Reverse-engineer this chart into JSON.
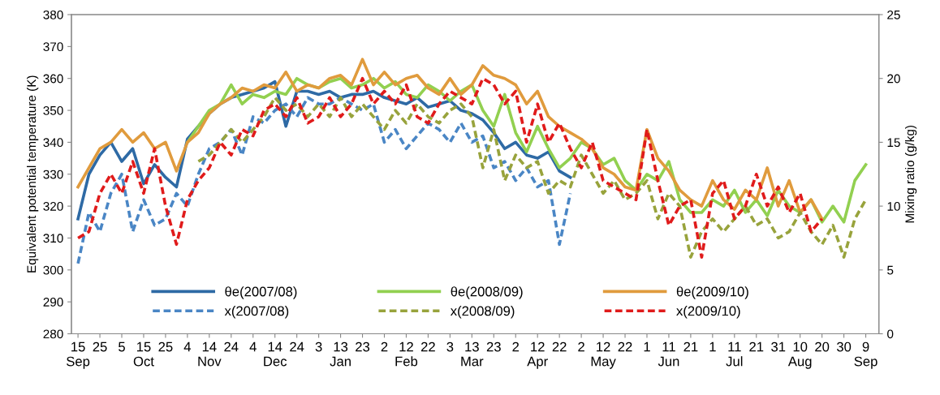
{
  "chart_data": {
    "type": "line",
    "ylabel": "Equivalent potential temperature (K)",
    "y2label": "Mixing ratio (g/kg)",
    "xlim": [
      "2007-09-12",
      "2008-09-15"
    ],
    "ylim": [
      280,
      380
    ],
    "y2lim": [
      0,
      25
    ],
    "yticks": [
      280,
      290,
      300,
      310,
      320,
      330,
      340,
      350,
      360,
      370,
      380
    ],
    "y2ticks": [
      0,
      5,
      10,
      15,
      20,
      25
    ],
    "xticks": [
      {
        "value": "2007-09-15",
        "label": "15\nSep"
      },
      {
        "value": "2007-09-25",
        "label": "25"
      },
      {
        "value": "2007-10-05",
        "label": "5"
      },
      {
        "value": "2007-10-15",
        "label": "15\nOct"
      },
      {
        "value": "2007-10-25",
        "label": "25"
      },
      {
        "value": "2007-11-04",
        "label": "4"
      },
      {
        "value": "2007-11-14",
        "label": "14\nNov"
      },
      {
        "value": "2007-11-24",
        "label": "24"
      },
      {
        "value": "2007-12-04",
        "label": "4"
      },
      {
        "value": "2007-12-14",
        "label": "14\nDec"
      },
      {
        "value": "2007-12-24",
        "label": "24"
      },
      {
        "value": "2008-01-03",
        "label": "3"
      },
      {
        "value": "2008-01-13",
        "label": "13\nJan"
      },
      {
        "value": "2008-01-23",
        "label": "23"
      },
      {
        "value": "2008-02-02",
        "label": "2"
      },
      {
        "value": "2008-02-12",
        "label": "12\nFeb"
      },
      {
        "value": "2008-02-22",
        "label": "22"
      },
      {
        "value": "2008-03-03",
        "label": "3"
      },
      {
        "value": "2008-03-13",
        "label": "13\nMar"
      },
      {
        "value": "2008-03-23",
        "label": "23"
      },
      {
        "value": "2008-04-02",
        "label": "2"
      },
      {
        "value": "2008-04-12",
        "label": "12\nApr"
      },
      {
        "value": "2008-04-22",
        "label": "22"
      },
      {
        "value": "2008-05-02",
        "label": "2"
      },
      {
        "value": "2008-05-12",
        "label": "12\nMay"
      },
      {
        "value": "2008-05-22",
        "label": "22"
      },
      {
        "value": "2008-06-01",
        "label": "1"
      },
      {
        "value": "2008-06-11",
        "label": "11\nJun"
      },
      {
        "value": "2008-06-21",
        "label": "21"
      },
      {
        "value": "2008-07-01",
        "label": "1"
      },
      {
        "value": "2008-07-11",
        "label": "11\nJul"
      },
      {
        "value": "2008-07-21",
        "label": "21"
      },
      {
        "value": "2008-07-31",
        "label": "31"
      },
      {
        "value": "2008-08-10",
        "label": "10\nAug"
      },
      {
        "value": "2008-08-20",
        "label": "20"
      },
      {
        "value": "2008-08-30",
        "label": "30"
      },
      {
        "value": "2008-09-09",
        "label": "9\nSep"
      }
    ],
    "grid": false,
    "legend": "bottom",
    "marker": "none",
    "x": [
      "2007-09-15",
      "2007-09-20",
      "2007-09-25",
      "2007-09-30",
      "2007-10-05",
      "2007-10-10",
      "2007-10-15",
      "2007-10-20",
      "2007-10-25",
      "2007-10-30",
      "2007-11-04",
      "2007-11-09",
      "2007-11-14",
      "2007-11-19",
      "2007-11-24",
      "2007-11-29",
      "2007-12-04",
      "2007-12-09",
      "2007-12-14",
      "2007-12-19",
      "2007-12-24",
      "2007-12-29",
      "2008-01-03",
      "2008-01-08",
      "2008-01-13",
      "2008-01-18",
      "2008-01-23",
      "2008-01-28",
      "2008-02-02",
      "2008-02-07",
      "2008-02-12",
      "2008-02-17",
      "2008-02-22",
      "2008-02-27",
      "2008-03-03",
      "2008-03-08",
      "2008-03-13",
      "2008-03-18",
      "2008-03-23",
      "2008-03-28",
      "2008-04-02",
      "2008-04-07",
      "2008-04-12",
      "2008-04-17",
      "2008-04-22",
      "2008-04-27",
      "2008-05-02",
      "2008-05-07",
      "2008-05-12",
      "2008-05-17",
      "2008-05-22",
      "2008-05-27",
      "2008-06-01",
      "2008-06-06",
      "2008-06-11",
      "2008-06-16",
      "2008-06-21",
      "2008-06-26",
      "2008-07-01",
      "2008-07-06",
      "2008-07-11",
      "2008-07-16",
      "2008-07-21",
      "2008-07-26",
      "2008-07-31",
      "2008-08-05",
      "2008-08-10",
      "2008-08-15",
      "2008-08-20",
      "2008-08-25",
      "2008-08-30",
      "2008-09-04",
      "2008-09-09"
    ],
    "series": [
      {
        "name": "θe(2007/08)",
        "color": "#2e6aa5",
        "line_style": "solid",
        "values": [
          316,
          330,
          336,
          340,
          334,
          338,
          327,
          333,
          329,
          326,
          341,
          345,
          349,
          352,
          354,
          355,
          356,
          357,
          359,
          345,
          356,
          356,
          355,
          356,
          354,
          355,
          355,
          356,
          354,
          353,
          352,
          354,
          351,
          352,
          353,
          350,
          349,
          347,
          343,
          338,
          340,
          336,
          335,
          337,
          331,
          329,
          null,
          null,
          null,
          null,
          null,
          null,
          null,
          null,
          null,
          null,
          null,
          null,
          null,
          null,
          null,
          null,
          null,
          null,
          null,
          null,
          null,
          null,
          null,
          null,
          null,
          null,
          null
        ]
      },
      {
        "name": "θe(2008/09)",
        "color": "#92d050",
        "line_style": "solid",
        "values": [
          null,
          null,
          null,
          null,
          null,
          null,
          null,
          null,
          null,
          null,
          340,
          345,
          350,
          352,
          358,
          352,
          355,
          354,
          356,
          355,
          360,
          358,
          357,
          359,
          360,
          357,
          358,
          360,
          357,
          359,
          355,
          354,
          358,
          356,
          353,
          356,
          358,
          350,
          345,
          355,
          343,
          337,
          345,
          338,
          332,
          335,
          340,
          338,
          333,
          335,
          328,
          325,
          330,
          328,
          334,
          322,
          318,
          318,
          322,
          320,
          325,
          318,
          322,
          317,
          325,
          320,
          318,
          322,
          315,
          320,
          315,
          328,
          333
        ]
      },
      {
        "name": "θe(2009/10)",
        "color": "#e09b3d",
        "line_style": "solid",
        "values": [
          326,
          332,
          338,
          340,
          344,
          340,
          343,
          338,
          340,
          331,
          340,
          343,
          349,
          352,
          354,
          357,
          356,
          358,
          357,
          362,
          356,
          358,
          357,
          360,
          361,
          358,
          366,
          358,
          362,
          358,
          360,
          361,
          357,
          355,
          360,
          355,
          358,
          364,
          361,
          360,
          358,
          352,
          356,
          348,
          345,
          343,
          341,
          338,
          332,
          330,
          326,
          325,
          344,
          335,
          331,
          325,
          322,
          320,
          328,
          322,
          319,
          325,
          322,
          332,
          320,
          328,
          318,
          322,
          316,
          null,
          null,
          null,
          null
        ]
      },
      {
        "name": "x(2007/08)",
        "color": "#4a86c5",
        "line_style": "dashed",
        "axis": "y2",
        "values": [
          5.5,
          9.5,
          8,
          11,
          12.5,
          8,
          10.5,
          8.5,
          9,
          11,
          10,
          12.5,
          14.5,
          15,
          16,
          14,
          17,
          16.5,
          17.5,
          18,
          17,
          18.5,
          18,
          18,
          18.5,
          18,
          17.5,
          18,
          15,
          16,
          14.5,
          15.5,
          16.5,
          16,
          15,
          16.5,
          15,
          15.5,
          13,
          13.5,
          12,
          13,
          11.5,
          12,
          7,
          11,
          null,
          null,
          null,
          null,
          null,
          null,
          null,
          null,
          null,
          null,
          null,
          null,
          null,
          null,
          null,
          null,
          null,
          null,
          null,
          null,
          null,
          null,
          null,
          null,
          null,
          null,
          null
        ]
      },
      {
        "name": "x(2008/09)",
        "color": "#98a33c",
        "line_style": "dashed",
        "axis": "y2",
        "values": [
          null,
          null,
          null,
          null,
          null,
          null,
          null,
          null,
          null,
          null,
          null,
          13.5,
          14,
          15,
          16,
          15,
          16,
          17,
          18.5,
          17.5,
          18,
          17,
          18,
          17,
          18.5,
          17,
          18,
          17,
          16,
          17.5,
          16.5,
          18,
          17,
          16.5,
          17.5,
          18,
          17,
          13,
          16,
          12,
          14,
          13,
          13.5,
          11,
          12,
          11.5,
          14,
          12.5,
          11,
          12,
          10.5,
          11,
          12,
          9,
          11,
          10,
          6,
          8,
          9,
          8,
          9,
          10,
          8.5,
          9,
          7.5,
          8,
          9.5,
          8,
          7,
          8.5,
          6,
          9,
          10.5
        ]
      },
      {
        "name": "x(2009/10)",
        "color": "#e01b1b",
        "line_style": "dashed",
        "axis": "y2",
        "values": [
          7.5,
          8,
          11,
          12.5,
          11,
          13.5,
          11,
          14.5,
          10,
          7,
          10.5,
          12,
          13,
          15,
          14,
          16,
          15.5,
          17.5,
          18,
          17,
          18.5,
          16.5,
          17,
          18.5,
          17,
          18,
          20,
          18,
          19,
          18,
          19.5,
          17,
          16.5,
          18,
          19,
          18.5,
          18,
          20,
          19.5,
          18,
          19,
          15,
          18,
          15,
          16.5,
          14.5,
          13,
          15,
          12,
          11.5,
          11,
          10.5,
          16,
          12,
          8.5,
          10,
          10.5,
          6,
          11,
          12,
          9,
          10,
          12.5,
          10,
          11.5,
          9.5,
          11,
          8,
          9,
          null,
          null,
          null,
          null
        ]
      }
    ]
  }
}
